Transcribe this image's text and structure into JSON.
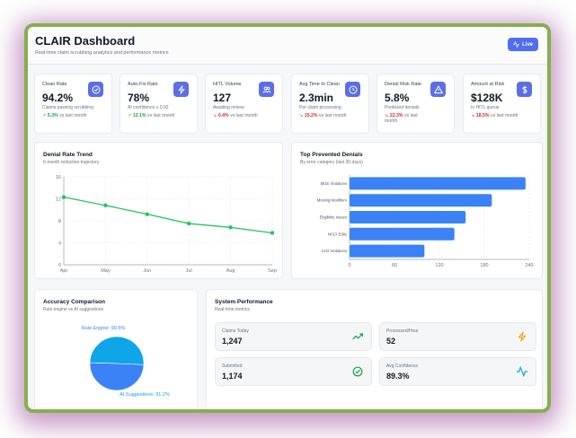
{
  "header": {
    "title": "CLAIR Dashboard",
    "subtitle": "Real-time claim scrubbing analytics and performance metrics",
    "live_label": "Live"
  },
  "kpis": [
    {
      "label": "Clean Rate",
      "value": "94.2%",
      "desc": "Claims passing scrubbing",
      "change": "5.3%",
      "trend": "up",
      "suffix": "vs last month",
      "icon": "check-circle-icon"
    },
    {
      "label": "Auto-Fix Rate",
      "value": "78%",
      "desc": "AI confidence ≥ 0.92",
      "change": "12.1%",
      "trend": "up",
      "suffix": "vs last month",
      "icon": "zap-icon"
    },
    {
      "label": "HITL Volume",
      "value": "127",
      "desc": "Awaiting review",
      "change": "0.4%",
      "trend": "down",
      "suffix": "vs last month",
      "icon": "users-icon"
    },
    {
      "label": "Avg Time to Clean",
      "value": "2.3min",
      "desc": "Per-claim processing",
      "change": "15.2%",
      "trend": "down",
      "suffix": "vs last month",
      "icon": "clock-icon"
    },
    {
      "label": "Denial Risk Rate",
      "value": "5.8%",
      "desc": "Predicted denials",
      "change": "22.3%",
      "trend": "down",
      "suffix": "vs last month",
      "icon": "alert-triangle-icon"
    },
    {
      "label": "Amount at Risk",
      "value": "$128K",
      "desc": "In HITL queue",
      "change": "18.5%",
      "trend": "down",
      "suffix": "vs last month",
      "icon": "dollar-icon"
    }
  ],
  "chart_data": [
    {
      "type": "line",
      "title": "Denial Rate Trend",
      "subtitle": "6-month reduction trajectory",
      "categories": [
        "Apr",
        "May",
        "Jun",
        "Jul",
        "Aug",
        "Sep"
      ],
      "values": [
        12.3,
        10.8,
        9.2,
        7.5,
        6.8,
        5.8
      ],
      "ylim": [
        0,
        16
      ],
      "yticks": [
        "0",
        "4",
        "8",
        "12",
        "16"
      ],
      "grid": true,
      "color": "#22c55e"
    },
    {
      "type": "bar",
      "orientation": "horizontal",
      "title": "Top Prevented Denials",
      "subtitle": "By error category (last 30 days)",
      "categories": [
        "MUE Violations",
        "Missing Modifiers",
        "Eligibility Issues",
        "NCCI Edits",
        "LCD Violations"
      ],
      "values": [
        235,
        190,
        155,
        140,
        100
      ],
      "xlim": [
        0,
        240
      ],
      "xticks": [
        "0",
        "60",
        "120",
        "180",
        "240"
      ],
      "grid": true,
      "color": "#3b82f6"
    },
    {
      "type": "pie",
      "title": "Accuracy Comparison",
      "subtitle": "Rule engine vs AI suggestions",
      "labels": [
        "Rule Engine: 90.5%",
        "AI Suggestions: 91.2%"
      ],
      "values": [
        90.5,
        91.2
      ],
      "colors": [
        "#3b82f6",
        "#0ea5e9"
      ]
    }
  ],
  "performance": {
    "title": "System Performance",
    "subtitle": "Real-time metrics",
    "items": [
      {
        "label": "Claims Today",
        "value": "1,247",
        "icon": "trending-up-icon",
        "color": "#16a34a"
      },
      {
        "label": "Processed/Hour",
        "value": "52",
        "icon": "zap-icon",
        "color": "#f59e0b"
      },
      {
        "label": "Submitted",
        "value": "1,174",
        "icon": "check-circle-icon",
        "color": "#16a34a"
      },
      {
        "label": "Avg Confidence",
        "value": "89.3%",
        "icon": "activity-icon",
        "color": "#0ea5e9"
      }
    ]
  }
}
